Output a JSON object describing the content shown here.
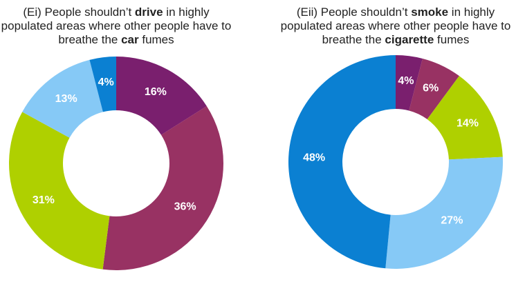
{
  "chart_data": [
    {
      "type": "pie",
      "title": [
        "(Ei) People shouldn’t ",
        "drive",
        " in highly populated areas where other people have to breathe the ",
        "car",
        " fumes"
      ],
      "categories": [
        null,
        null,
        null,
        null,
        null
      ],
      "values": [
        16,
        36,
        31,
        13,
        4
      ],
      "value_labels": [
        "16%",
        "36%",
        "31%",
        "13%",
        "4%"
      ],
      "colors": [
        "#7a1f6e",
        "#983263",
        "#afd000",
        "#86c9f6",
        "#0b80d2"
      ]
    },
    {
      "type": "pie",
      "title": [
        "(Eii) People shouldn’t ",
        "smoke",
        " in highly populated areas where other people have to breathe the ",
        "cigarette",
        " fumes"
      ],
      "categories": [
        null,
        null,
        null,
        null,
        null
      ],
      "values": [
        4,
        6,
        14,
        27,
        48
      ],
      "value_labels": [
        "4%",
        "6%",
        "14%",
        "27%",
        "48%"
      ],
      "colors": [
        "#7a1f6e",
        "#983263",
        "#afd000",
        "#86c9f6",
        "#0b80d2"
      ]
    }
  ]
}
